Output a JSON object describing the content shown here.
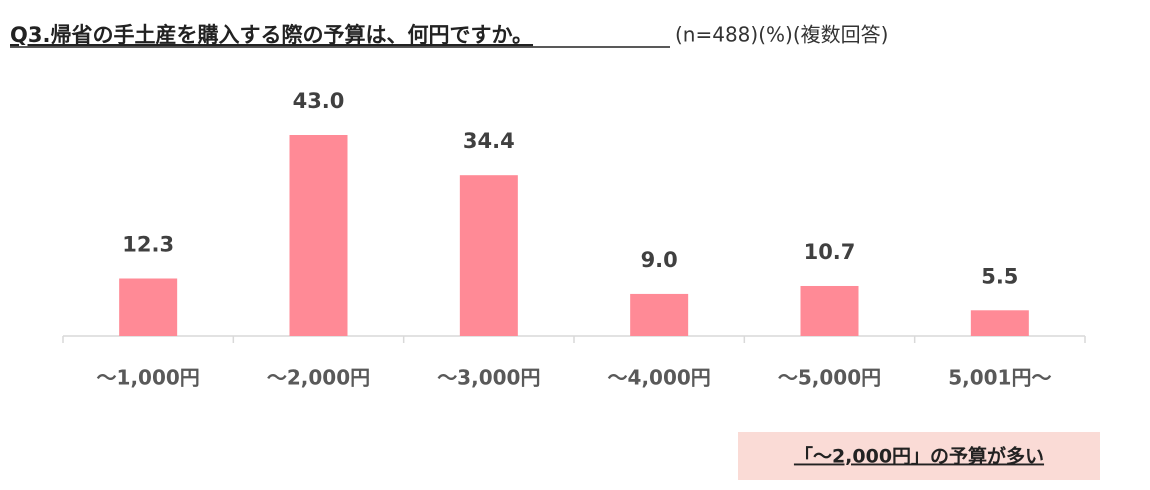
{
  "chart_data": {
    "type": "bar",
    "title": "Q3.帰省の手土産を購入する際の予算は、何円ですか。",
    "subtitle": "(n=488)(%)(複数回答)",
    "categories": [
      "～1,000円",
      "～2,000円",
      "～3,000円",
      "～4,000円",
      "～5,000円",
      "5,001円～"
    ],
    "values": [
      12.3,
      43,
      34.4,
      9,
      10.7,
      5.5
    ],
    "value_labels": [
      "12.3",
      "43.0",
      "34.4",
      "9.0",
      "10.7",
      "5.5"
    ],
    "color": "#ff8a96",
    "annotation": "「～2,000円」の予算が多い"
  }
}
